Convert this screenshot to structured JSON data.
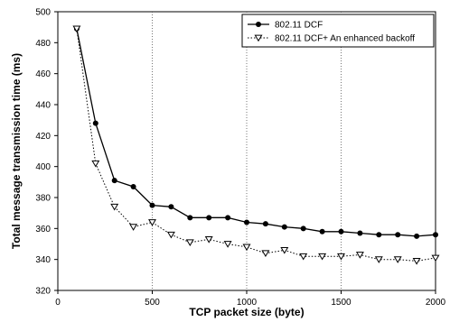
{
  "chart_data": {
    "type": "line",
    "title": "",
    "xlabel": "TCP packet size (byte)",
    "ylabel": "Total message transmission time (ms)",
    "xlim": [
      0,
      2000
    ],
    "ylim": [
      320,
      500
    ],
    "x_ticks": [
      0,
      500,
      1000,
      1500,
      2000
    ],
    "y_ticks": [
      320,
      340,
      360,
      380,
      400,
      420,
      440,
      460,
      480,
      500
    ],
    "grid": "vertical dotted",
    "legend_position": "top-right",
    "series": [
      {
        "name": "802.11 DCF",
        "marker": "filled-circle",
        "line": "solid",
        "x": [
          100,
          200,
          300,
          400,
          500,
          600,
          700,
          800,
          900,
          1000,
          1100,
          1200,
          1300,
          1400,
          1500,
          1600,
          1700,
          1800,
          1900,
          2000
        ],
        "values": [
          489,
          428,
          391,
          387,
          375,
          374,
          367,
          367,
          367,
          364,
          363,
          361,
          360,
          358,
          358,
          357,
          356,
          356,
          355,
          356
        ]
      },
      {
        "name": "802.11 DCF+ An enhanced backoff",
        "marker": "open-triangle-down",
        "line": "dotted",
        "x": [
          100,
          200,
          300,
          400,
          500,
          600,
          700,
          800,
          900,
          1000,
          1100,
          1200,
          1300,
          1400,
          1500,
          1600,
          1700,
          1800,
          1900,
          2000
        ],
        "values": [
          489,
          402,
          374,
          361,
          364,
          356,
          351,
          353,
          350,
          348,
          344,
          346,
          342,
          342,
          342,
          343,
          340,
          340,
          339,
          341
        ]
      }
    ]
  }
}
